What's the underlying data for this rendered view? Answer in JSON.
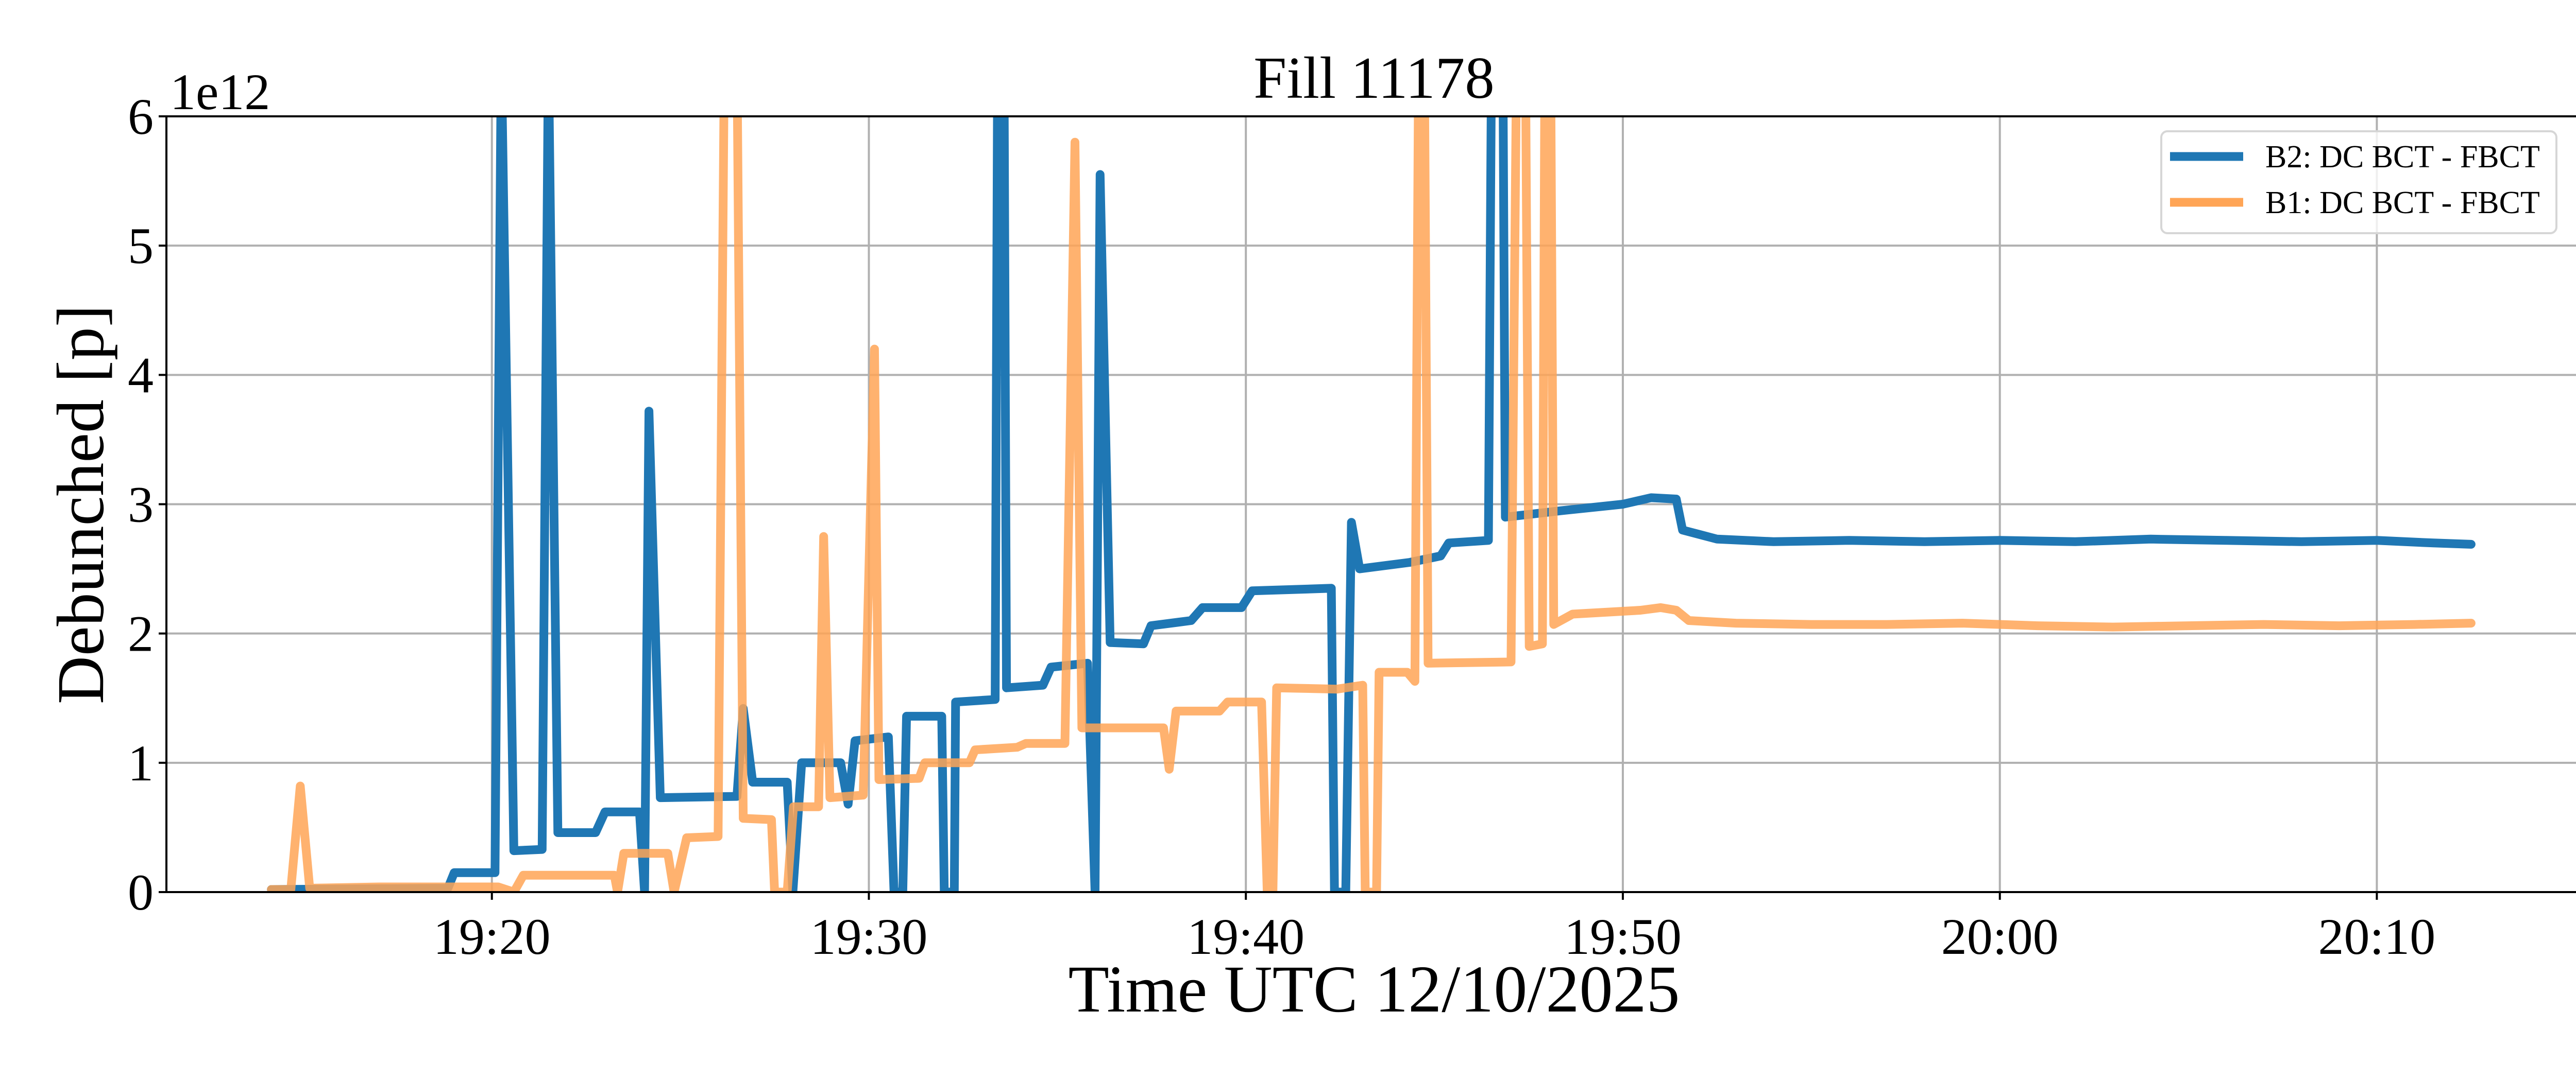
{
  "chart_data": {
    "type": "line",
    "title": "Fill 11178",
    "xlabel": "Time UTC 12/10/2025",
    "ylabel": "Debunched [p]",
    "y_offset_text": "1e12",
    "y_unit_scale": 1000000000000.0,
    "xlim": [
      "19:11:22",
      "20:15:26"
    ],
    "ylim": [
      0,
      6
    ],
    "x_ticks": [
      "19:20",
      "19:30",
      "19:40",
      "19:50",
      "20:00",
      "20:10"
    ],
    "y_ticks": [
      "0",
      "1",
      "2",
      "3",
      "4",
      "5",
      "6"
    ],
    "grid": true,
    "legend_position": "top-right",
    "series": [
      {
        "name": "B2: DC BCT - FBCT",
        "color": "#1f77b4",
        "points": [
          [
            "19:14:09",
            0.02
          ],
          [
            "19:18:50",
            0.03
          ],
          [
            "19:19:00",
            0.15
          ],
          [
            "19:20:05",
            0.15
          ],
          [
            "19:20:15",
            6.5
          ],
          [
            "19:20:35",
            0.32
          ],
          [
            "19:21:20",
            0.33
          ],
          [
            "19:21:30",
            6.5
          ],
          [
            "19:21:45",
            0.46
          ],
          [
            "19:22:45",
            0.46
          ],
          [
            "19:23:00",
            0.62
          ],
          [
            "19:23:55",
            0.62
          ],
          [
            "19:24:03",
            0
          ],
          [
            "19:24:10",
            3.72
          ],
          [
            "19:24:28",
            0.73
          ],
          [
            "19:26:30",
            0.74
          ],
          [
            "19:26:40",
            1.42
          ],
          [
            "19:26:55",
            0.85
          ],
          [
            "19:27:50",
            0.85
          ],
          [
            "19:27:59",
            0
          ],
          [
            "19:28:13",
            1.0
          ],
          [
            "19:29:15",
            1.0
          ],
          [
            "19:29:27",
            0.68
          ],
          [
            "19:29:38",
            1.17
          ],
          [
            "19:30:31",
            1.2
          ],
          [
            "19:30:40",
            0
          ],
          [
            "19:30:54",
            0
          ],
          [
            "19:31:00",
            1.36
          ],
          [
            "19:31:56",
            1.36
          ],
          [
            "19:32:00",
            0
          ],
          [
            "19:32:16",
            0
          ],
          [
            "19:32:18",
            1.47
          ],
          [
            "19:33:21",
            1.49
          ],
          [
            "19:33:25",
            6.5
          ],
          [
            "19:33:35",
            6.5
          ],
          [
            "19:33:39",
            1.58
          ],
          [
            "19:34:37",
            1.6
          ],
          [
            "19:34:50",
            1.74
          ],
          [
            "19:35:48",
            1.77
          ],
          [
            "19:36:00",
            0
          ],
          [
            "19:36:08",
            5.55
          ],
          [
            "19:36:24",
            1.93
          ],
          [
            "19:37:17",
            1.92
          ],
          [
            "19:37:29",
            2.06
          ],
          [
            "19:38:33",
            2.1
          ],
          [
            "19:38:51",
            2.2
          ],
          [
            "19:39:53",
            2.2
          ],
          [
            "19:40:10",
            2.33
          ],
          [
            "19:42:16",
            2.35
          ],
          [
            "19:42:21",
            0
          ],
          [
            "19:42:39",
            0
          ],
          [
            "19:42:48",
            2.86
          ],
          [
            "19:43:01",
            2.5
          ],
          [
            "19:44:21",
            2.55
          ],
          [
            "19:45:10",
            2.6
          ],
          [
            "19:45:23",
            2.7
          ],
          [
            "19:46:26",
            2.72
          ],
          [
            "19:46:31",
            6.5
          ],
          [
            "19:46:49",
            6.5
          ],
          [
            "19:46:53",
            2.9
          ],
          [
            "19:48:22",
            2.95
          ],
          [
            "19:50:00",
            3.0
          ],
          [
            "19:50:45",
            3.05
          ],
          [
            "19:51:25",
            3.04
          ],
          [
            "19:51:35",
            2.8
          ],
          [
            "19:52:30",
            2.73
          ],
          [
            "19:54:00",
            2.71
          ],
          [
            "19:56:00",
            2.72
          ],
          [
            "19:58:00",
            2.71
          ],
          [
            "20:00:00",
            2.72
          ],
          [
            "20:02:00",
            2.71
          ],
          [
            "20:04:00",
            2.73
          ],
          [
            "20:06:00",
            2.72
          ],
          [
            "20:08:00",
            2.71
          ],
          [
            "20:10:00",
            2.72
          ],
          [
            "20:11:30",
            2.7
          ],
          [
            "20:12:30",
            2.69
          ]
        ]
      },
      {
        "name": "B1: DC BCT - FBCT",
        "color": "#ffa556",
        "points": [
          [
            "19:14:09",
            0.02
          ],
          [
            "19:14:40",
            0.02
          ],
          [
            "19:14:55",
            0.82
          ],
          [
            "19:15:10",
            0.03
          ],
          [
            "19:17:00",
            0.04
          ],
          [
            "19:20:10",
            0.04
          ],
          [
            "19:20:35",
            0
          ],
          [
            "19:20:50",
            0.13
          ],
          [
            "19:23:15",
            0.13
          ],
          [
            "19:23:20",
            0
          ],
          [
            "19:23:30",
            0.3
          ],
          [
            "19:24:40",
            0.3
          ],
          [
            "19:24:50",
            0
          ],
          [
            "19:25:10",
            0.42
          ],
          [
            "19:26:00",
            0.43
          ],
          [
            "19:26:10",
            6.5
          ],
          [
            "19:26:30",
            6.5
          ],
          [
            "19:26:40",
            0.57
          ],
          [
            "19:27:25",
            0.56
          ],
          [
            "19:27:30",
            0
          ],
          [
            "19:27:50",
            0
          ],
          [
            "19:28:00",
            0.66
          ],
          [
            "19:28:40",
            0.66
          ],
          [
            "19:28:48",
            2.75
          ],
          [
            "19:28:58",
            0.73
          ],
          [
            "19:29:51",
            0.75
          ],
          [
            "19:30:09",
            4.2
          ],
          [
            "19:30:16",
            0.87
          ],
          [
            "19:31:20",
            0.88
          ],
          [
            "19:31:29",
            1.0
          ],
          [
            "19:32:40",
            1.0
          ],
          [
            "19:32:49",
            1.1
          ],
          [
            "19:33:56",
            1.12
          ],
          [
            "19:34:10",
            1.15
          ],
          [
            "19:35:12",
            1.15
          ],
          [
            "19:35:28",
            5.8
          ],
          [
            "19:35:39",
            1.27
          ],
          [
            "19:37:49",
            1.27
          ],
          [
            "19:37:58",
            0.95
          ],
          [
            "19:38:09",
            1.4
          ],
          [
            "19:39:18",
            1.4
          ],
          [
            "19:39:31",
            1.47
          ],
          [
            "19:40:25",
            1.47
          ],
          [
            "19:40:34",
            0
          ],
          [
            "19:40:43",
            0
          ],
          [
            "19:40:49",
            1.58
          ],
          [
            "19:42:25",
            1.57
          ],
          [
            "19:43:06",
            1.6
          ],
          [
            "19:43:10",
            0
          ],
          [
            "19:43:28",
            0
          ],
          [
            "19:43:32",
            1.7
          ],
          [
            "19:44:17",
            1.7
          ],
          [
            "19:44:29",
            1.63
          ],
          [
            "19:44:35",
            6.5
          ],
          [
            "19:44:44",
            6.5
          ],
          [
            "19:44:50",
            1.77
          ],
          [
            "19:47:02",
            1.78
          ],
          [
            "19:47:11",
            6.5
          ],
          [
            "19:47:25",
            6.5
          ],
          [
            "19:47:31",
            1.9
          ],
          [
            "19:47:52",
            1.92
          ],
          [
            "19:47:56",
            6.5
          ],
          [
            "19:48:05",
            6.5
          ],
          [
            "19:48:10",
            2.07
          ],
          [
            "19:48:40",
            2.15
          ],
          [
            "19:50:28",
            2.18
          ],
          [
            "19:51:00",
            2.2
          ],
          [
            "19:51:25",
            2.18
          ],
          [
            "19:51:45",
            2.1
          ],
          [
            "19:53:00",
            2.08
          ],
          [
            "19:55:00",
            2.07
          ],
          [
            "19:57:00",
            2.07
          ],
          [
            "19:59:00",
            2.08
          ],
          [
            "20:01:00",
            2.06
          ],
          [
            "20:03:00",
            2.05
          ],
          [
            "20:05:00",
            2.06
          ],
          [
            "20:07:00",
            2.07
          ],
          [
            "20:09:00",
            2.06
          ],
          [
            "20:11:00",
            2.07
          ],
          [
            "20:12:30",
            2.08
          ]
        ]
      }
    ]
  }
}
